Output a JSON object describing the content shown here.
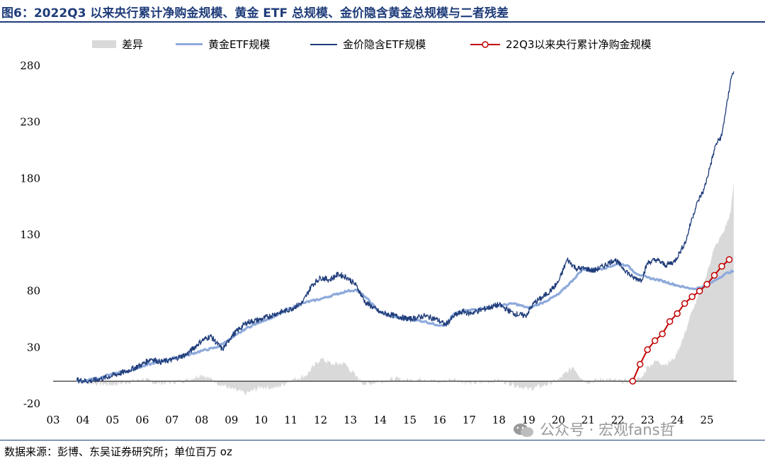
{
  "figure": {
    "title": "图6：2022Q3 以来央行累计净购金规模、黄金 ETF 总规模、金价隐含黄金总规模与二者残差",
    "source": "数据来源：彭博、东吴证券研究所；单位百万 oz",
    "watermark": "公众号 · 宏观fans哲"
  },
  "legend": {
    "diff": "差异",
    "etf": "黄金ETF规模",
    "implied": "金价隐含ETF规模",
    "cb": "22Q3以来央行累计净购金规模"
  },
  "colors": {
    "title": "#1f3c7a",
    "diff_fill": "#d9d9d9",
    "etf_line": "#8eaadb",
    "implied_line": "#1f3c7a",
    "cb_line": "#c00000"
  },
  "chart_data": {
    "type": "line",
    "x_ticks": [
      "03",
      "04",
      "05",
      "06",
      "07",
      "08",
      "09",
      "10",
      "11",
      "12",
      "13",
      "14",
      "15",
      "16",
      "17",
      "18",
      "19",
      "20",
      "21",
      "22",
      "23",
      "24",
      "25"
    ],
    "y_ticks": [
      280,
      230,
      180,
      130,
      80,
      30,
      -20
    ],
    "ylim": [
      -20,
      280
    ],
    "xlim": [
      2003.0,
      2026.0
    ],
    "legend_position": "top",
    "grid": false,
    "series": [
      {
        "name": "黄金ETF规模",
        "key": "etf",
        "x": [
          2003.8,
          2004.2,
          2004.6,
          2005.0,
          2005.5,
          2006.0,
          2006.5,
          2007.0,
          2007.5,
          2008.0,
          2008.5,
          2009.0,
          2009.5,
          2010.0,
          2010.5,
          2011.0,
          2011.5,
          2012.0,
          2012.5,
          2012.9,
          2013.2,
          2013.5,
          2014.0,
          2014.5,
          2015.0,
          2015.5,
          2015.9,
          2016.2,
          2016.5,
          2017.0,
          2017.5,
          2018.0,
          2018.5,
          2019.0,
          2019.5,
          2020.0,
          2020.5,
          2020.8,
          2021.0,
          2021.5,
          2022.0,
          2022.3,
          2022.6,
          2023.0,
          2023.5,
          2024.0,
          2024.3,
          2024.6,
          2025.0,
          2025.3,
          2025.6,
          2025.9
        ],
        "values": [
          0,
          1,
          3,
          7,
          9,
          13,
          17,
          20,
          23,
          27,
          30,
          38,
          47,
          53,
          58,
          65,
          70,
          73,
          77,
          80,
          81,
          75,
          61,
          57,
          55,
          53,
          50,
          50,
          60,
          63,
          65,
          67,
          69,
          65,
          70,
          77,
          90,
          99,
          99,
          100,
          104,
          103,
          96,
          92,
          89,
          85,
          83,
          82,
          85,
          90,
          95,
          98
        ]
      },
      {
        "name": "金价隐含ETF规模",
        "key": "implied",
        "x": [
          2003.8,
          2004.2,
          2004.6,
          2005.0,
          2005.5,
          2006.0,
          2006.3,
          2006.6,
          2007.0,
          2007.5,
          2008.0,
          2008.3,
          2008.7,
          2009.0,
          2009.5,
          2010.0,
          2010.5,
          2011.0,
          2011.4,
          2011.7,
          2012.0,
          2012.3,
          2012.6,
          2012.9,
          2013.2,
          2013.5,
          2013.8,
          2014.0,
          2014.5,
          2015.0,
          2015.5,
          2015.9,
          2016.2,
          2016.5,
          2016.8,
          2017.0,
          2017.5,
          2018.0,
          2018.5,
          2018.9,
          2019.2,
          2019.5,
          2019.8,
          2020.0,
          2020.3,
          2020.6,
          2020.9,
          2021.2,
          2021.5,
          2021.9,
          2022.2,
          2022.5,
          2022.8,
          2023.0,
          2023.3,
          2023.6,
          2023.9,
          2024.1,
          2024.3,
          2024.5,
          2024.7,
          2024.9,
          2025.1,
          2025.3,
          2025.5,
          2025.6,
          2025.7,
          2025.8,
          2025.9
        ],
        "values": [
          1,
          0,
          2,
          5,
          9,
          15,
          20,
          17,
          19,
          24,
          36,
          40,
          28,
          40,
          52,
          55,
          60,
          64,
          70,
          85,
          92,
          90,
          95,
          92,
          85,
          70,
          65,
          61,
          58,
          55,
          58,
          55,
          50,
          58,
          62,
          60,
          64,
          68,
          60,
          58,
          70,
          75,
          82,
          88,
          108,
          100,
          100,
          98,
          102,
          108,
          100,
          92,
          90,
          105,
          108,
          103,
          106,
          115,
          125,
          145,
          160,
          170,
          190,
          210,
          218,
          235,
          250,
          268,
          275
        ]
      },
      {
        "name": "差异",
        "key": "diff",
        "x": [
          2003.8,
          2004.5,
          2005.0,
          2005.5,
          2006.0,
          2006.5,
          2007.0,
          2007.5,
          2008.0,
          2008.5,
          2009.0,
          2009.5,
          2010.0,
          2010.5,
          2011.0,
          2011.5,
          2011.8,
          2012.0,
          2012.4,
          2012.8,
          2013.2,
          2013.5,
          2014.0,
          2014.5,
          2015.0,
          2015.5,
          2016.0,
          2016.5,
          2017.0,
          2017.5,
          2018.0,
          2018.5,
          2019.0,
          2019.5,
          2020.0,
          2020.5,
          2020.8,
          2021.0,
          2021.5,
          2022.0,
          2022.5,
          2022.8,
          2023.0,
          2023.3,
          2023.6,
          2023.9,
          2024.2,
          2024.5,
          2024.8,
          2025.0,
          2025.2,
          2025.4,
          2025.6,
          2025.8,
          2025.9
        ],
        "values": [
          0,
          -2,
          -3,
          -1,
          2,
          -2,
          -1,
          1,
          6,
          -1,
          -7,
          -11,
          -5,
          -6,
          1,
          5,
          14,
          20,
          15,
          16,
          4,
          -3,
          0,
          2,
          1,
          2,
          -1,
          2,
          -2,
          -1,
          1,
          -3,
          -7,
          -4,
          1,
          13,
          2,
          -1,
          2,
          0,
          0,
          3,
          13,
          18,
          15,
          20,
          38,
          62,
          80,
          95,
          115,
          125,
          135,
          150,
          177
        ]
      },
      {
        "name": "22Q3以来央行累计净购金规模",
        "key": "cb",
        "x": [
          2022.5,
          2022.75,
          2023.0,
          2023.25,
          2023.5,
          2023.75,
          2024.0,
          2024.25,
          2024.5,
          2024.75,
          2025.0,
          2025.25,
          2025.5,
          2025.75
        ],
        "values": [
          0,
          15,
          28,
          36,
          42,
          53,
          60,
          69,
          75,
          80,
          86,
          94,
          102,
          108
        ]
      }
    ]
  }
}
